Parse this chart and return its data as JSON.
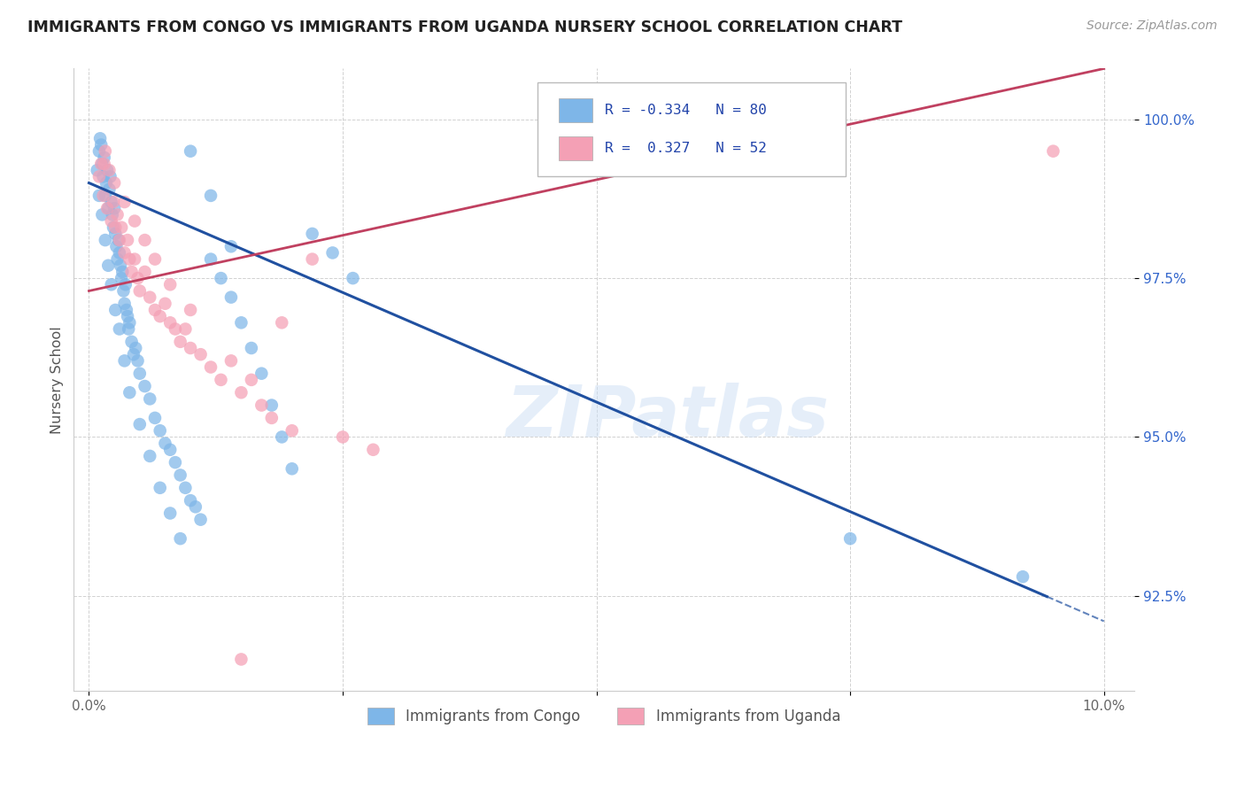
{
  "title": "IMMIGRANTS FROM CONGO VS IMMIGRANTS FROM UGANDA NURSERY SCHOOL CORRELATION CHART",
  "source": "Source: ZipAtlas.com",
  "ylabel": "Nursery School",
  "congo_color": "#7EB6E8",
  "uganda_color": "#F4A0B5",
  "congo_line_color": "#2050A0",
  "uganda_line_color": "#C04060",
  "watermark": "ZIPatlas",
  "legend_r_congo": "-0.334",
  "legend_n_congo": "80",
  "legend_r_uganda": "0.327",
  "legend_n_uganda": "52",
  "congo_scatter_x": [
    0.08,
    0.1,
    0.11,
    0.12,
    0.13,
    0.14,
    0.15,
    0.16,
    0.17,
    0.18,
    0.19,
    0.2,
    0.21,
    0.22,
    0.23,
    0.24,
    0.25,
    0.26,
    0.27,
    0.28,
    0.29,
    0.3,
    0.31,
    0.32,
    0.33,
    0.34,
    0.35,
    0.36,
    0.37,
    0.38,
    0.39,
    0.4,
    0.42,
    0.44,
    0.46,
    0.48,
    0.5,
    0.55,
    0.6,
    0.65,
    0.7,
    0.75,
    0.8,
    0.85,
    0.9,
    0.95,
    1.0,
    1.05,
    1.1,
    1.2,
    1.3,
    1.4,
    1.5,
    1.6,
    1.7,
    1.8,
    1.9,
    2.0,
    2.2,
    2.4,
    2.6,
    0.1,
    0.13,
    0.16,
    0.19,
    0.22,
    0.26,
    0.3,
    0.35,
    0.4,
    0.5,
    0.6,
    0.7,
    0.8,
    0.9,
    1.0,
    1.2,
    1.4,
    7.5,
    9.2
  ],
  "congo_scatter_y": [
    99.2,
    99.5,
    99.7,
    99.6,
    99.3,
    99.1,
    99.4,
    98.8,
    99.0,
    99.2,
    98.6,
    98.9,
    99.1,
    98.7,
    98.5,
    98.3,
    98.6,
    98.2,
    98.0,
    97.8,
    98.1,
    97.9,
    97.7,
    97.5,
    97.6,
    97.3,
    97.1,
    97.4,
    97.0,
    96.9,
    96.7,
    96.8,
    96.5,
    96.3,
    96.4,
    96.2,
    96.0,
    95.8,
    95.6,
    95.3,
    95.1,
    94.9,
    94.8,
    94.6,
    94.4,
    94.2,
    94.0,
    93.9,
    93.7,
    97.8,
    97.5,
    97.2,
    96.8,
    96.4,
    96.0,
    95.5,
    95.0,
    94.5,
    98.2,
    97.9,
    97.5,
    98.8,
    98.5,
    98.1,
    97.7,
    97.4,
    97.0,
    96.7,
    96.2,
    95.7,
    95.2,
    94.7,
    94.2,
    93.8,
    93.4,
    99.5,
    98.8,
    98.0,
    93.4,
    92.8
  ],
  "uganda_scatter_x": [
    0.1,
    0.12,
    0.14,
    0.16,
    0.18,
    0.2,
    0.22,
    0.24,
    0.26,
    0.28,
    0.3,
    0.32,
    0.35,
    0.38,
    0.4,
    0.42,
    0.45,
    0.48,
    0.5,
    0.55,
    0.6,
    0.65,
    0.7,
    0.75,
    0.8,
    0.85,
    0.9,
    0.95,
    1.0,
    1.1,
    1.2,
    1.3,
    1.4,
    1.5,
    1.6,
    1.7,
    1.8,
    1.9,
    2.0,
    2.2,
    2.5,
    2.8,
    0.15,
    0.25,
    0.35,
    0.45,
    0.55,
    0.65,
    0.8,
    1.0,
    9.5,
    1.5
  ],
  "uganda_scatter_y": [
    99.1,
    99.3,
    98.8,
    99.5,
    98.6,
    99.2,
    98.4,
    98.7,
    98.3,
    98.5,
    98.1,
    98.3,
    97.9,
    98.1,
    97.8,
    97.6,
    97.8,
    97.5,
    97.3,
    97.6,
    97.2,
    97.0,
    96.9,
    97.1,
    96.8,
    96.7,
    96.5,
    96.7,
    96.4,
    96.3,
    96.1,
    95.9,
    96.2,
    95.7,
    95.9,
    95.5,
    95.3,
    96.8,
    95.1,
    97.8,
    95.0,
    94.8,
    99.3,
    99.0,
    98.7,
    98.4,
    98.1,
    97.8,
    97.4,
    97.0,
    99.5,
    91.5
  ],
  "congo_line_x0": 0.0,
  "congo_line_y0": 99.0,
  "congo_line_x1": 10.0,
  "congo_line_y1": 92.1,
  "uganda_line_x0": 0.0,
  "uganda_line_y0": 97.3,
  "uganda_line_x1": 10.0,
  "uganda_line_y1": 100.8,
  "xlim_left": -0.15,
  "xlim_right": 10.3,
  "ylim_bottom": 91.0,
  "ylim_top": 100.8,
  "y_ticks": [
    92.5,
    95.0,
    97.5,
    100.0
  ],
  "y_tick_labels": [
    "92.5%",
    "95.0%",
    "97.5%",
    "100.0%"
  ],
  "x_ticks": [
    0.0,
    2.5,
    5.0,
    7.5,
    10.0
  ],
  "x_tick_labels": [
    "0.0%",
    "",
    "",
    "",
    "10.0%"
  ],
  "dashed_y_threshold": 92.5
}
